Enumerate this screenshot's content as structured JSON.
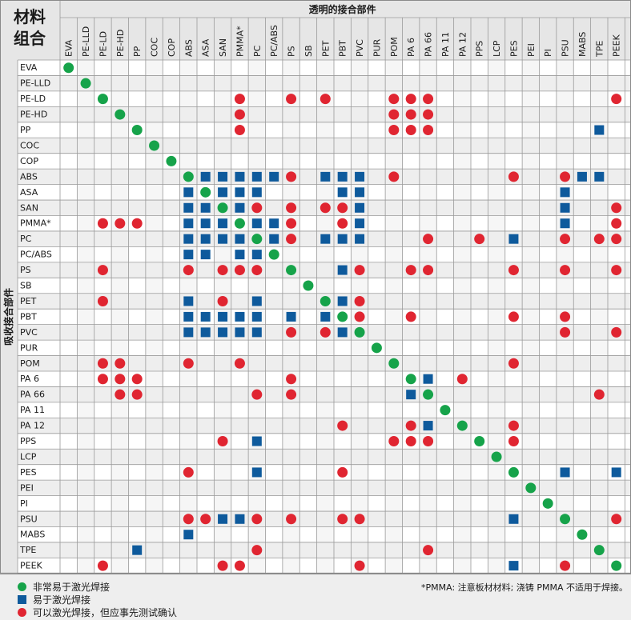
{
  "chart_data": {
    "type": "table",
    "title": "材料组合",
    "column_header": "透明的接合部件",
    "row_header": "吸收接合部件",
    "materials": [
      "EVA",
      "PE-LLD",
      "PE-LD",
      "PE-HD",
      "PP",
      "COC",
      "COP",
      "ABS",
      "ASA",
      "SAN",
      "PMMA*",
      "PC",
      "PC/ABS",
      "PS",
      "SB",
      "PET",
      "PBT",
      "PVC",
      "PUR",
      "POM",
      "PA 6",
      "PA 66",
      "PA 11",
      "PA 12",
      "PPS",
      "LCP",
      "PES",
      "PEI",
      "PI",
      "PSU",
      "MABS",
      "TPE",
      "PEEK"
    ],
    "rating_codes": {
      "g": "非常易于激光焊接",
      "b": "易于激光焊接",
      "r": "可以激光焊接，但应事先测试确认"
    },
    "rows": [
      {
        "material": "EVA",
        "ratings": {
          "EVA": "g"
        }
      },
      {
        "material": "PE-LLD",
        "ratings": {
          "PE-LLD": "g"
        }
      },
      {
        "material": "PE-LD",
        "ratings": {
          "PE-LD": "g",
          "PMMA*": "r",
          "PS": "r",
          "PET": "r",
          "POM": "r",
          "PA 6": "r",
          "PA 66": "r",
          "PEEK": "r"
        }
      },
      {
        "material": "PE-HD",
        "ratings": {
          "PE-HD": "g",
          "PMMA*": "r",
          "POM": "r",
          "PA 6": "r",
          "PA 66": "r"
        }
      },
      {
        "material": "PP",
        "ratings": {
          "PP": "g",
          "PMMA*": "r",
          "POM": "r",
          "PA 6": "r",
          "PA 66": "r",
          "TPE": "b"
        }
      },
      {
        "material": "COC",
        "ratings": {
          "COC": "g"
        }
      },
      {
        "material": "COP",
        "ratings": {
          "COP": "g"
        }
      },
      {
        "material": "ABS",
        "ratings": {
          "ABS": "g",
          "ASA": "b",
          "SAN": "b",
          "PMMA*": "b",
          "PC": "b",
          "PC/ABS": "b",
          "PS": "r",
          "PET": "b",
          "PBT": "b",
          "PVC": "b",
          "POM": "r",
          "PES": "r",
          "PSU": "r",
          "MABS": "b",
          "TPE": "b"
        }
      },
      {
        "material": "ASA",
        "ratings": {
          "ABS": "b",
          "ASA": "g",
          "SAN": "b",
          "PMMA*": "b",
          "PC": "b",
          "PBT": "b",
          "PVC": "b",
          "PSU": "b"
        }
      },
      {
        "material": "SAN",
        "ratings": {
          "ABS": "b",
          "ASA": "b",
          "SAN": "g",
          "PMMA*": "b",
          "PC": "r",
          "PS": "r",
          "PET": "r",
          "PBT": "r",
          "PVC": "b",
          "PSU": "b",
          "PEEK": "r"
        }
      },
      {
        "material": "PMMA*",
        "ratings": {
          "PE-LD": "r",
          "PE-HD": "r",
          "PP": "r",
          "ABS": "b",
          "ASA": "b",
          "SAN": "b",
          "PMMA*": "g",
          "PC": "b",
          "PC/ABS": "b",
          "PS": "r",
          "PBT": "r",
          "PVC": "b",
          "PSU": "b",
          "PEEK": "r"
        }
      },
      {
        "material": "PC",
        "ratings": {
          "ABS": "b",
          "ASA": "b",
          "SAN": "b",
          "PMMA*": "b",
          "PC": "g",
          "PC/ABS": "b",
          "PS": "r",
          "PET": "b",
          "PBT": "b",
          "PVC": "b",
          "PA 66": "r",
          "PPS": "r",
          "PES": "b",
          "PSU": "r",
          "TPE": "r",
          "PEEK": "r"
        }
      },
      {
        "material": "PC/ABS",
        "ratings": {
          "ABS": "b",
          "ASA": "b",
          "PMMA*": "b",
          "PC": "b",
          "PC/ABS": "g"
        }
      },
      {
        "material": "PS",
        "ratings": {
          "PE-LD": "r",
          "ABS": "r",
          "SAN": "r",
          "PMMA*": "r",
          "PC": "r",
          "PS": "g",
          "PBT": "b",
          "PVC": "r",
          "PA 6": "r",
          "PA 66": "r",
          "PES": "r",
          "PSU": "r",
          "PEEK": "r"
        }
      },
      {
        "material": "SB",
        "ratings": {
          "SB": "g"
        }
      },
      {
        "material": "PET",
        "ratings": {
          "PE-LD": "r",
          "ABS": "b",
          "SAN": "r",
          "PC": "b",
          "PET": "g",
          "PBT": "b",
          "PVC": "r"
        }
      },
      {
        "material": "PBT",
        "ratings": {
          "ABS": "b",
          "ASA": "b",
          "SAN": "b",
          "PMMA*": "b",
          "PC": "b",
          "PS": "b",
          "PET": "b",
          "PBT": "g",
          "PVC": "r",
          "PA 6": "r",
          "PES": "r",
          "PSU": "r"
        }
      },
      {
        "material": "PVC",
        "ratings": {
          "ABS": "b",
          "ASA": "b",
          "SAN": "b",
          "PMMA*": "b",
          "PC": "b",
          "PS": "r",
          "PET": "r",
          "PBT": "b",
          "PVC": "g",
          "PSU": "r",
          "PEEK": "r"
        }
      },
      {
        "material": "PUR",
        "ratings": {
          "PUR": "g"
        }
      },
      {
        "material": "POM",
        "ratings": {
          "PE-LD": "r",
          "PE-HD": "r",
          "ABS": "r",
          "PMMA*": "r",
          "POM": "g",
          "PES": "r"
        }
      },
      {
        "material": "PA 6",
        "ratings": {
          "PE-LD": "r",
          "PE-HD": "r",
          "PP": "r",
          "PS": "r",
          "PA 6": "g",
          "PA 66": "b",
          "PA 12": "r"
        }
      },
      {
        "material": "PA 66",
        "ratings": {
          "PE-HD": "r",
          "PP": "r",
          "PC": "r",
          "PS": "r",
          "PA 6": "b",
          "PA 66": "g",
          "TPE": "r"
        }
      },
      {
        "material": "PA 11",
        "ratings": {
          "PA 11": "g"
        }
      },
      {
        "material": "PA 12",
        "ratings": {
          "PBT": "r",
          "PA 6": "r",
          "PA 66": "b",
          "PA 12": "g",
          "PES": "r"
        }
      },
      {
        "material": "PPS",
        "ratings": {
          "SAN": "r",
          "PC": "b",
          "POM": "r",
          "PA 6": "r",
          "PA 66": "r",
          "PPS": "g",
          "PES": "r"
        }
      },
      {
        "material": "LCP",
        "ratings": {
          "LCP": "g"
        }
      },
      {
        "material": "PES",
        "ratings": {
          "ABS": "r",
          "PC": "b",
          "PBT": "r",
          "PES": "g",
          "PSU": "b",
          "PEEK": "b"
        }
      },
      {
        "material": "PEI",
        "ratings": {
          "PEI": "g"
        }
      },
      {
        "material": "PI",
        "ratings": {
          "PI": "g"
        }
      },
      {
        "material": "PSU",
        "ratings": {
          "ABS": "r",
          "ASA": "r",
          "SAN": "b",
          "PMMA*": "b",
          "PC": "r",
          "PS": "r",
          "PBT": "r",
          "PVC": "r",
          "PES": "b",
          "PSU": "g",
          "PEEK": "r"
        }
      },
      {
        "material": "MABS",
        "ratings": {
          "ABS": "b",
          "MABS": "g"
        }
      },
      {
        "material": "TPE",
        "ratings": {
          "PP": "b",
          "PC": "r",
          "PA 66": "r",
          "TPE": "g"
        }
      },
      {
        "material": "PEEK",
        "ratings": {
          "PE-LD": "r",
          "SAN": "r",
          "PMMA*": "r",
          "PVC": "r",
          "PES": "b",
          "PSU": "r",
          "PEEK": "g"
        }
      }
    ]
  },
  "legend": {
    "very_easy": "非常易于激光焊接",
    "easy": "易于激光焊接",
    "possible": "可以激光焊接，但应事先测试确认"
  },
  "footnote": "*PMMA: 注意板材材料; 浇铸 PMMA 不适用于焊接。",
  "colors": {
    "very_easy": "#16a34a",
    "easy": "#0e5a9c",
    "possible": "#e02531",
    "header_bg": "#e6e6e6",
    "stripe": "#eeeeee",
    "grid": "#9a9a9a"
  }
}
